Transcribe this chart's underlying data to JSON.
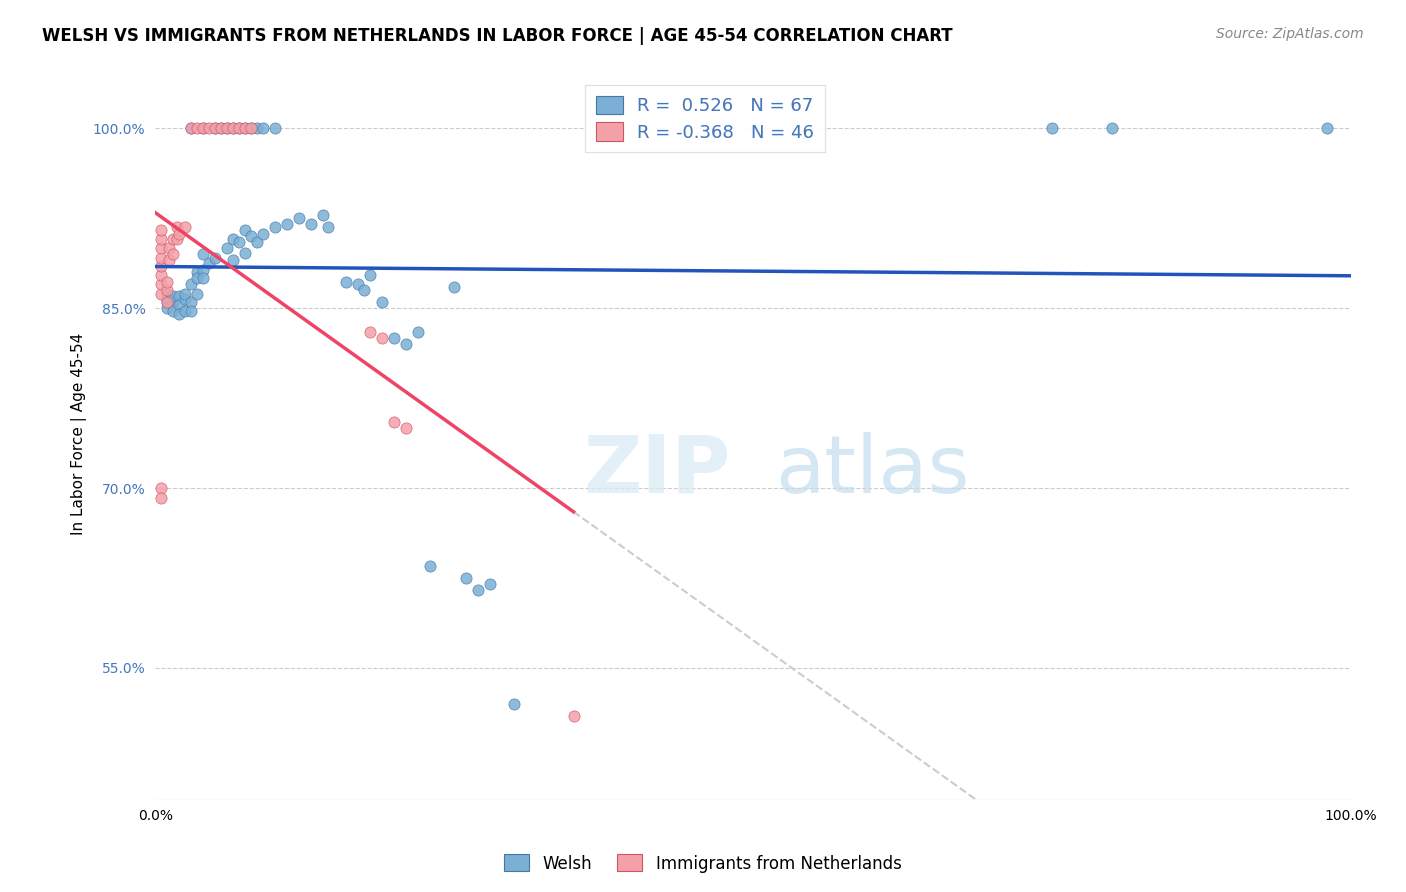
{
  "title": "WELSH VS IMMIGRANTS FROM NETHERLANDS IN LABOR FORCE | AGE 45-54 CORRELATION CHART",
  "source": "Source: ZipAtlas.com",
  "ylabel": "In Labor Force | Age 45-54",
  "ytick_vals": [
    0.55,
    0.7,
    0.85,
    1.0
  ],
  "xlim": [
    0.0,
    1.0
  ],
  "ylim": [
    0.44,
    1.05
  ],
  "legend_label1": "Welsh",
  "legend_label2": "Immigrants from Netherlands",
  "R_blue": "0.526",
  "N_blue": "67",
  "R_pink": "-0.368",
  "N_pink": "46",
  "blue_color": "#7BAFD4",
  "pink_color": "#F4A0A8",
  "blue_edge_color": "#4477AA",
  "pink_edge_color": "#CC5566",
  "blue_line_color": "#2255BB",
  "pink_line_color": "#EE4466",
  "dash_line_color": "#CCCCCC",
  "title_fontsize": 12,
  "axis_label_fontsize": 11,
  "tick_fontsize": 10,
  "source_fontsize": 10,
  "background_color": "#FFFFFF",
  "grid_color": "#CCCCCC",
  "tick_color": "#4477BB",
  "blue_dots": [
    [
      0.01,
      0.855
    ],
    [
      0.01,
      0.862
    ],
    [
      0.01,
      0.858
    ],
    [
      0.01,
      0.85
    ],
    [
      0.015,
      0.855
    ],
    [
      0.015,
      0.848
    ],
    [
      0.015,
      0.86
    ],
    [
      0.02,
      0.86
    ],
    [
      0.02,
      0.853
    ],
    [
      0.02,
      0.845
    ],
    [
      0.025,
      0.858
    ],
    [
      0.025,
      0.862
    ],
    [
      0.025,
      0.848
    ],
    [
      0.03,
      0.87
    ],
    [
      0.03,
      0.855
    ],
    [
      0.03,
      0.848
    ],
    [
      0.035,
      0.88
    ],
    [
      0.035,
      0.862
    ],
    [
      0.035,
      0.875
    ],
    [
      0.04,
      0.895
    ],
    [
      0.04,
      0.882
    ],
    [
      0.04,
      0.875
    ],
    [
      0.045,
      0.888
    ],
    [
      0.05,
      0.892
    ],
    [
      0.06,
      0.9
    ],
    [
      0.065,
      0.908
    ],
    [
      0.065,
      0.89
    ],
    [
      0.07,
      0.905
    ],
    [
      0.075,
      0.915
    ],
    [
      0.075,
      0.896
    ],
    [
      0.08,
      0.91
    ],
    [
      0.085,
      0.905
    ],
    [
      0.09,
      0.912
    ],
    [
      0.1,
      0.918
    ],
    [
      0.11,
      0.92
    ],
    [
      0.12,
      0.925
    ],
    [
      0.13,
      0.92
    ],
    [
      0.14,
      0.928
    ],
    [
      0.145,
      0.918
    ],
    [
      0.16,
      0.872
    ],
    [
      0.17,
      0.87
    ],
    [
      0.175,
      0.865
    ],
    [
      0.18,
      0.878
    ],
    [
      0.19,
      0.855
    ],
    [
      0.2,
      0.825
    ],
    [
      0.21,
      0.82
    ],
    [
      0.22,
      0.83
    ],
    [
      0.25,
      0.868
    ],
    [
      0.23,
      0.635
    ],
    [
      0.26,
      0.625
    ],
    [
      0.27,
      0.615
    ],
    [
      0.28,
      0.62
    ],
    [
      0.3,
      0.52
    ],
    [
      0.03,
      1.0
    ],
    [
      0.04,
      1.0
    ],
    [
      0.05,
      1.0
    ],
    [
      0.055,
      1.0
    ],
    [
      0.06,
      1.0
    ],
    [
      0.065,
      1.0
    ],
    [
      0.07,
      1.0
    ],
    [
      0.075,
      1.0
    ],
    [
      0.08,
      1.0
    ],
    [
      0.085,
      1.0
    ],
    [
      0.09,
      1.0
    ],
    [
      0.1,
      1.0
    ],
    [
      0.75,
      1.0
    ],
    [
      0.8,
      1.0
    ],
    [
      0.98,
      1.0
    ]
  ],
  "pink_dots": [
    [
      0.005,
      0.862
    ],
    [
      0.005,
      0.87
    ],
    [
      0.005,
      0.878
    ],
    [
      0.005,
      0.885
    ],
    [
      0.005,
      0.892
    ],
    [
      0.005,
      0.9
    ],
    [
      0.005,
      0.908
    ],
    [
      0.005,
      0.915
    ],
    [
      0.01,
      0.865
    ],
    [
      0.01,
      0.855
    ],
    [
      0.01,
      0.872
    ],
    [
      0.012,
      0.89
    ],
    [
      0.012,
      0.9
    ],
    [
      0.015,
      0.908
    ],
    [
      0.015,
      0.895
    ],
    [
      0.018,
      0.918
    ],
    [
      0.018,
      0.908
    ],
    [
      0.02,
      0.912
    ],
    [
      0.025,
      0.918
    ],
    [
      0.03,
      1.0
    ],
    [
      0.035,
      1.0
    ],
    [
      0.04,
      1.0
    ],
    [
      0.045,
      1.0
    ],
    [
      0.05,
      1.0
    ],
    [
      0.055,
      1.0
    ],
    [
      0.06,
      1.0
    ],
    [
      0.065,
      1.0
    ],
    [
      0.07,
      1.0
    ],
    [
      0.075,
      1.0
    ],
    [
      0.08,
      1.0
    ],
    [
      0.005,
      0.7
    ],
    [
      0.005,
      0.692
    ],
    [
      0.18,
      0.83
    ],
    [
      0.19,
      0.825
    ],
    [
      0.2,
      0.755
    ],
    [
      0.21,
      0.75
    ],
    [
      0.35,
      0.51
    ]
  ]
}
